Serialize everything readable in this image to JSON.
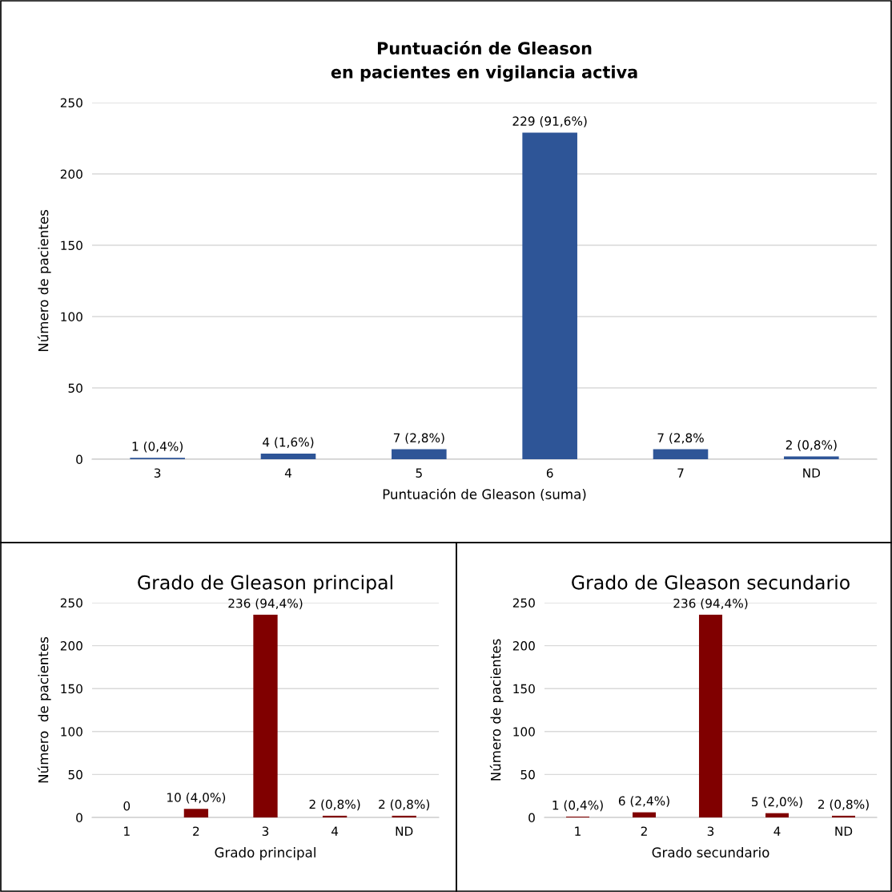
{
  "chart_data": [
    {
      "type": "bar",
      "title": "Puntuación de Gleason\nen pacientes en vigilancia activa",
      "xlabel": "Puntuación de Gleason (suma)",
      "ylabel": "Número de pacientes",
      "categories": [
        "3",
        "4",
        "5",
        "6",
        "7",
        "ND"
      ],
      "values": [
        1,
        4,
        7,
        229,
        7,
        2
      ],
      "value_labels": [
        "1 (0,4%)",
        "4 (1,6%)",
        "7 (2,8%)",
        "229 (91,6%)",
        "7 (2,8%",
        "2 (0,8%)"
      ],
      "color": "#2e5597",
      "ylim": [
        0,
        250
      ],
      "yticks": [
        0,
        50,
        100,
        150,
        200,
        250
      ],
      "grid": "y",
      "legend": false
    },
    {
      "type": "bar",
      "title": "Grado de Gleason principal",
      "xlabel": "Grado principal",
      "ylabel": "Número  de pacientes",
      "categories": [
        "1",
        "2",
        "3",
        "4",
        "ND"
      ],
      "values": [
        0,
        10,
        236,
        2,
        2
      ],
      "value_labels": [
        "0",
        "10 (4,0%)",
        "236 (94,4%)",
        "2 (0,8%)",
        "2 (0,8%)"
      ],
      "color": "#800000",
      "ylim": [
        0,
        250
      ],
      "yticks": [
        0,
        50,
        100,
        150,
        200,
        250
      ],
      "grid": "y",
      "legend": false
    },
    {
      "type": "bar",
      "title": "Grado de Gleason secundario",
      "xlabel": "Grado secundario",
      "ylabel": "Número de pacientes",
      "categories": [
        "1",
        "2",
        "3",
        "4",
        "ND"
      ],
      "values": [
        1,
        6,
        236,
        5,
        2
      ],
      "value_labels": [
        "1 (0,4%)",
        "6 (2,4%)",
        "236 (94,4%)",
        "5 (2,0%)",
        "2 (0,8%)"
      ],
      "color": "#800000",
      "ylim": [
        0,
        250
      ],
      "yticks": [
        0,
        50,
        100,
        150,
        200,
        250
      ],
      "grid": "y",
      "legend": false
    }
  ]
}
